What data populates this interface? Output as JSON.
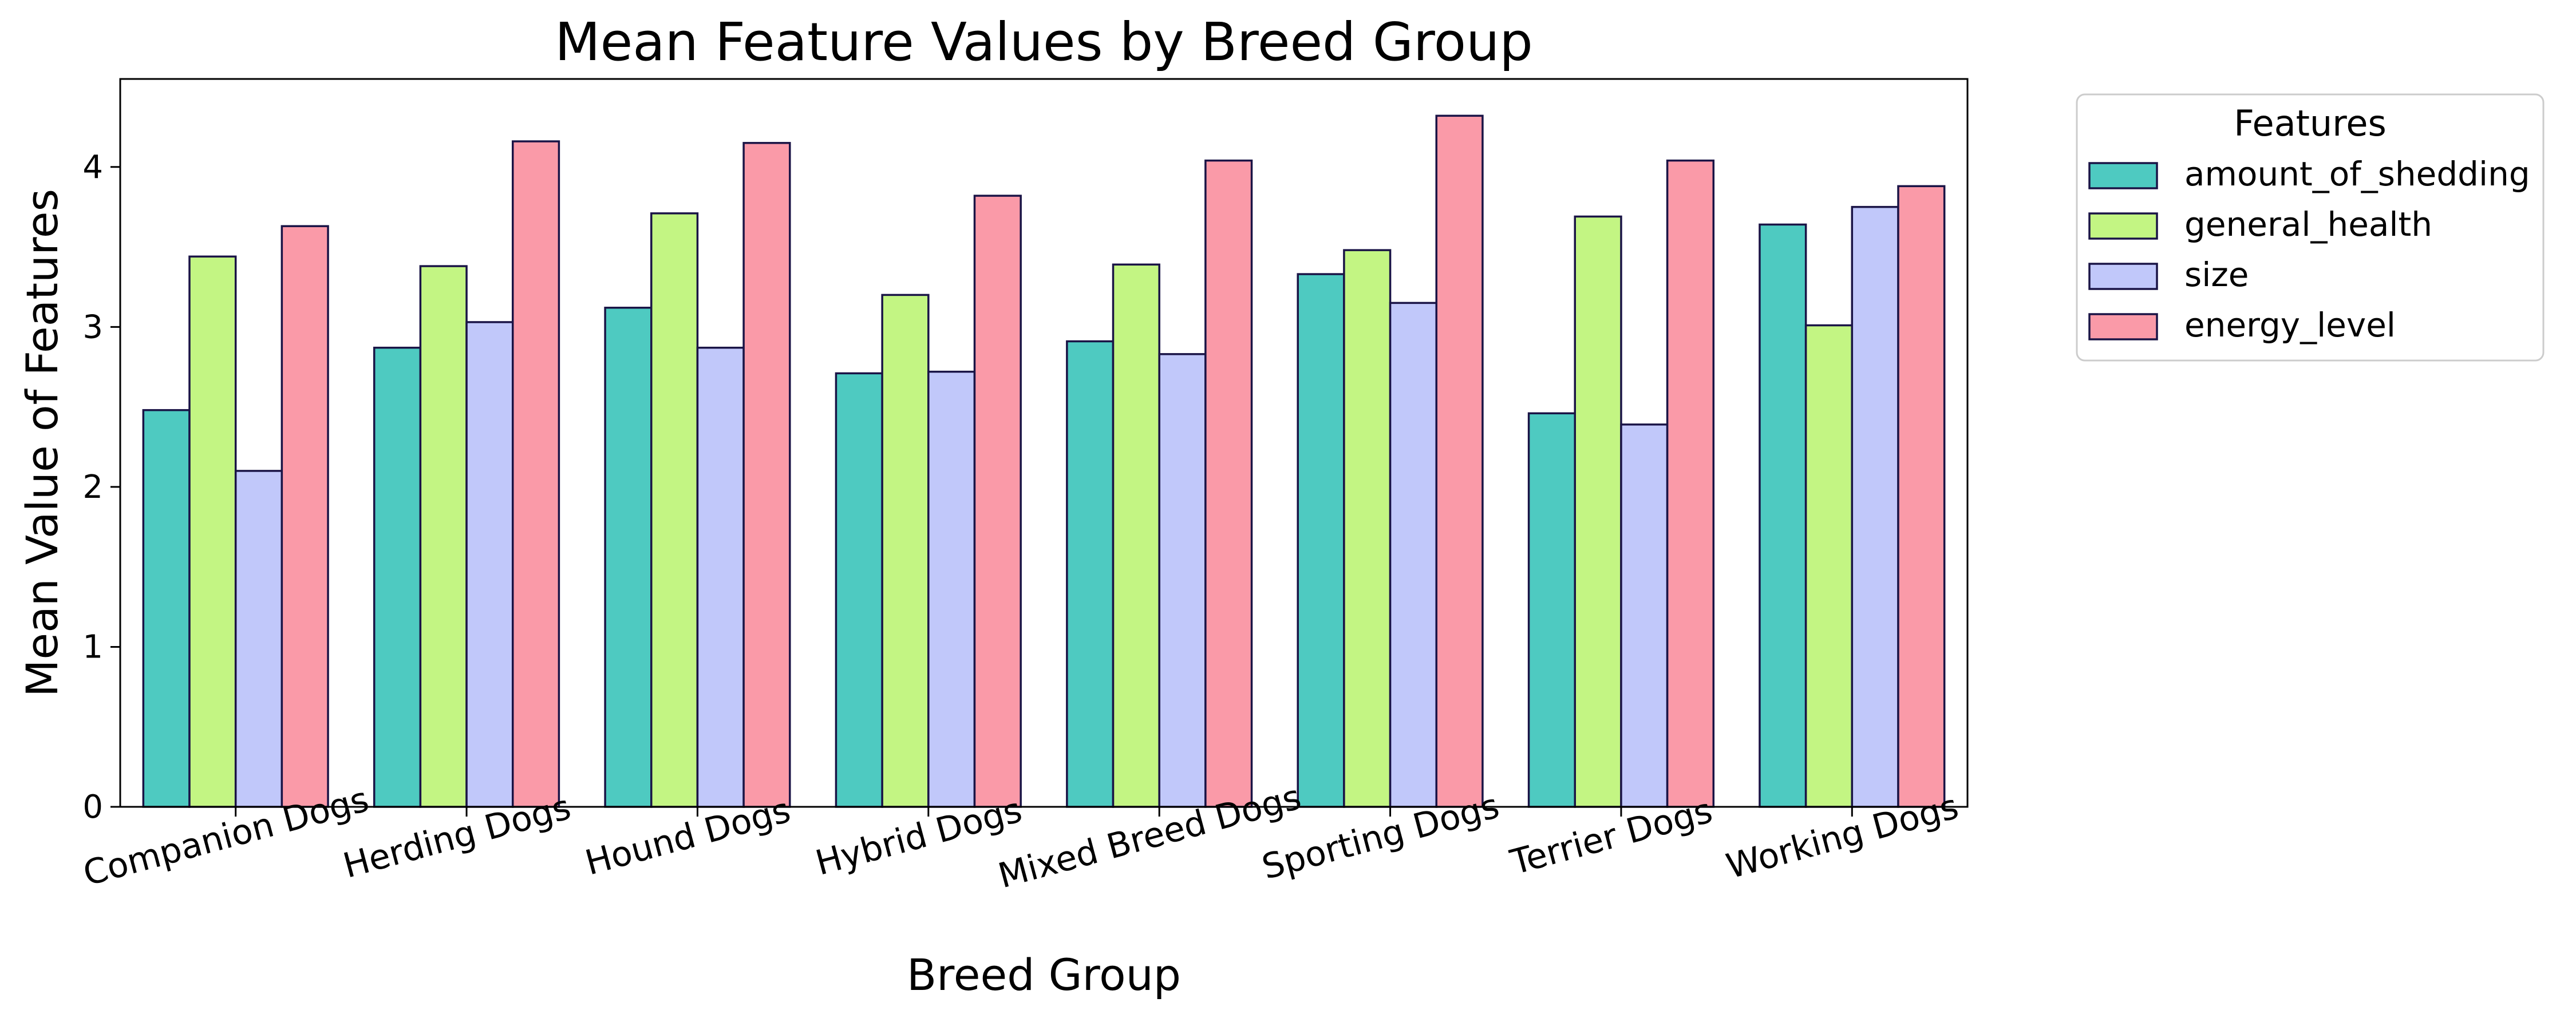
{
  "chart_data": {
    "type": "bar",
    "title": "Mean Feature Values by Breed Group",
    "xlabel": "Breed Group",
    "ylabel": "Mean Value of Features",
    "categories": [
      "Companion Dogs",
      "Herding Dogs",
      "Hound Dogs",
      "Hybrid Dogs",
      "Mixed Breed Dogs",
      "Sporting Dogs",
      "Terrier Dogs",
      "Working Dogs"
    ],
    "series": [
      {
        "name": "amount_of_shedding",
        "color": "#4ecac1",
        "values": [
          2.48,
          2.87,
          3.12,
          2.71,
          2.91,
          3.33,
          2.46,
          3.64
        ]
      },
      {
        "name": "general_health",
        "color": "#c3f583",
        "values": [
          3.44,
          3.38,
          3.71,
          3.2,
          3.39,
          3.48,
          3.69,
          3.01
        ]
      },
      {
        "name": "size",
        "color": "#c1c8fa",
        "values": [
          2.1,
          3.03,
          2.87,
          2.72,
          2.83,
          3.15,
          2.39,
          3.75
        ]
      },
      {
        "name": "energy_level",
        "color": "#fa9aa8",
        "values": [
          3.63,
          4.16,
          4.15,
          3.82,
          4.04,
          4.32,
          4.04,
          3.88
        ]
      }
    ],
    "ylim": [
      0,
      4.55
    ],
    "yticks": [
      0,
      1,
      2,
      3,
      4
    ],
    "grid": false,
    "legend": {
      "title": "Features",
      "placement": "outside-top-right"
    },
    "bar_edge_color": "#1a1446",
    "xtick_rotation": -15
  }
}
